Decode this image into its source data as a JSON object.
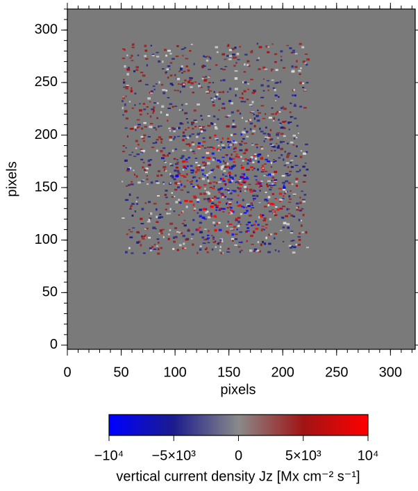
{
  "chart_data": {
    "type": "image",
    "xlabel": "pixels",
    "ylabel": "pixels",
    "xlim": [
      0,
      323
    ],
    "ylim": [
      -4,
      320
    ],
    "xticks": [
      0,
      50,
      100,
      150,
      200,
      250,
      300
    ],
    "yticks": [
      0,
      50,
      100,
      150,
      200,
      250,
      300
    ],
    "background": "#7a7a7a",
    "colorbar": {
      "label": "vertical current density Jz [Mx cm⁻² s⁻¹]",
      "lim": [
        -10000,
        10000
      ],
      "ticks": [
        {
          "value": -10000,
          "label": "−10⁴"
        },
        {
          "value": -5000,
          "label": "−5×10³"
        },
        0,
        {
          "value": 5000,
          "label": "5×10³"
        },
        {
          "value": 10000,
          "label": "10⁴"
        }
      ],
      "colors": [
        "#0000ff",
        "#1c1c8c",
        "#8a8a8a",
        "#a01414",
        "#ff0000"
      ]
    }
  }
}
